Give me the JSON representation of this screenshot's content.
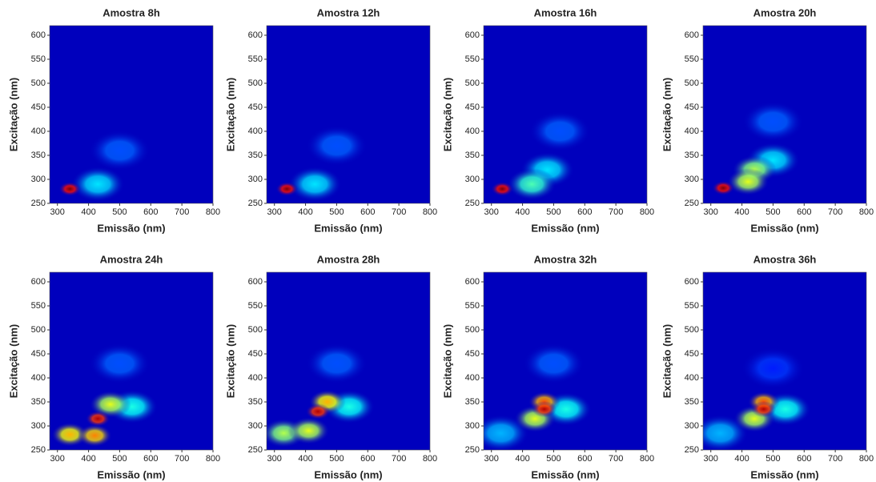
{
  "chart_data": [
    {
      "type": "heatmap",
      "title": "Amostra 8h",
      "x_label": "Emissão (nm)",
      "y_label": "Excitação (nm)",
      "xlim": [
        275,
        800
      ],
      "ylim": [
        250,
        620
      ],
      "xticks": [
        300,
        400,
        500,
        600,
        700,
        800
      ],
      "yticks": [
        250,
        300,
        350,
        400,
        450,
        500,
        550,
        600
      ],
      "peaks": [
        {
          "emission": 500,
          "excitation": 360,
          "intensity": 0.2
        },
        {
          "emission": 430,
          "excitation": 290,
          "intensity": 0.35
        },
        {
          "emission": 340,
          "excitation": 280,
          "intensity": 1.0
        }
      ]
    },
    {
      "type": "heatmap",
      "title": "Amostra 12h",
      "x_label": "Emissão (nm)",
      "y_label": "Excitação (nm)",
      "xlim": [
        275,
        800
      ],
      "ylim": [
        250,
        620
      ],
      "xticks": [
        300,
        400,
        500,
        600,
        700,
        800
      ],
      "yticks": [
        250,
        300,
        350,
        400,
        450,
        500,
        550,
        600
      ],
      "peaks": [
        {
          "emission": 500,
          "excitation": 370,
          "intensity": 0.2
        },
        {
          "emission": 430,
          "excitation": 290,
          "intensity": 0.35
        },
        {
          "emission": 340,
          "excitation": 280,
          "intensity": 1.0
        }
      ]
    },
    {
      "type": "heatmap",
      "title": "Amostra 16h",
      "x_label": "Emissão (nm)",
      "y_label": "Excitação (nm)",
      "xlim": [
        275,
        800
      ],
      "ylim": [
        250,
        620
      ],
      "xticks": [
        300,
        400,
        500,
        600,
        700,
        800
      ],
      "yticks": [
        250,
        300,
        350,
        400,
        450,
        500,
        550,
        600
      ],
      "peaks": [
        {
          "emission": 520,
          "excitation": 400,
          "intensity": 0.2
        },
        {
          "emission": 480,
          "excitation": 320,
          "intensity": 0.35
        },
        {
          "emission": 430,
          "excitation": 290,
          "intensity": 0.45
        },
        {
          "emission": 335,
          "excitation": 280,
          "intensity": 1.0
        }
      ]
    },
    {
      "type": "heatmap",
      "title": "Amostra 20h",
      "x_label": "Emissão (nm)",
      "y_label": "Excitação (nm)",
      "xlim": [
        275,
        800
      ],
      "ylim": [
        250,
        620
      ],
      "xticks": [
        300,
        400,
        500,
        600,
        700,
        800
      ],
      "yticks": [
        250,
        300,
        350,
        400,
        450,
        500,
        550,
        600
      ],
      "peaks": [
        {
          "emission": 500,
          "excitation": 420,
          "intensity": 0.2
        },
        {
          "emission": 500,
          "excitation": 340,
          "intensity": 0.35
        },
        {
          "emission": 440,
          "excitation": 320,
          "intensity": 0.55
        },
        {
          "emission": 420,
          "excitation": 295,
          "intensity": 0.6
        },
        {
          "emission": 340,
          "excitation": 282,
          "intensity": 1.0
        }
      ]
    },
    {
      "type": "heatmap",
      "title": "Amostra 24h",
      "x_label": "Emissão (nm)",
      "y_label": "Excitação (nm)",
      "xlim": [
        275,
        800
      ],
      "ylim": [
        250,
        620
      ],
      "xticks": [
        300,
        400,
        500,
        600,
        700,
        800
      ],
      "yticks": [
        250,
        300,
        350,
        400,
        450,
        500,
        550,
        600
      ],
      "peaks": [
        {
          "emission": 500,
          "excitation": 430,
          "intensity": 0.2
        },
        {
          "emission": 540,
          "excitation": 340,
          "intensity": 0.4
        },
        {
          "emission": 470,
          "excitation": 345,
          "intensity": 0.6
        },
        {
          "emission": 340,
          "excitation": 282,
          "intensity": 0.7
        },
        {
          "emission": 420,
          "excitation": 280,
          "intensity": 0.75
        },
        {
          "emission": 430,
          "excitation": 315,
          "intensity": 0.95
        }
      ]
    },
    {
      "type": "heatmap",
      "title": "Amostra 28h",
      "x_label": "Emissão (nm)",
      "y_label": "Excitação (nm)",
      "xlim": [
        275,
        800
      ],
      "ylim": [
        250,
        620
      ],
      "xticks": [
        300,
        400,
        500,
        600,
        700,
        800
      ],
      "yticks": [
        250,
        300,
        350,
        400,
        450,
        500,
        550,
        600
      ],
      "peaks": [
        {
          "emission": 500,
          "excitation": 430,
          "intensity": 0.2
        },
        {
          "emission": 540,
          "excitation": 340,
          "intensity": 0.4
        },
        {
          "emission": 330,
          "excitation": 285,
          "intensity": 0.55
        },
        {
          "emission": 410,
          "excitation": 290,
          "intensity": 0.6
        },
        {
          "emission": 470,
          "excitation": 350,
          "intensity": 0.7
        },
        {
          "emission": 440,
          "excitation": 330,
          "intensity": 0.95
        }
      ]
    },
    {
      "type": "heatmap",
      "title": "Amostra 32h",
      "x_label": "Emissão (nm)",
      "y_label": "Excitação (nm)",
      "xlim": [
        275,
        800
      ],
      "ylim": [
        250,
        620
      ],
      "xticks": [
        300,
        400,
        500,
        600,
        700,
        800
      ],
      "yticks": [
        250,
        300,
        350,
        400,
        450,
        500,
        550,
        600
      ],
      "peaks": [
        {
          "emission": 500,
          "excitation": 430,
          "intensity": 0.2
        },
        {
          "emission": 330,
          "excitation": 285,
          "intensity": 0.3
        },
        {
          "emission": 540,
          "excitation": 335,
          "intensity": 0.4
        },
        {
          "emission": 440,
          "excitation": 315,
          "intensity": 0.6
        },
        {
          "emission": 470,
          "excitation": 350,
          "intensity": 0.8
        },
        {
          "emission": 470,
          "excitation": 335,
          "intensity": 0.95
        }
      ]
    },
    {
      "type": "heatmap",
      "title": "Amostra 36h",
      "x_label": "Emissão (nm)",
      "y_label": "Excitação (nm)",
      "xlim": [
        275,
        800
      ],
      "ylim": [
        250,
        620
      ],
      "xticks": [
        300,
        400,
        500,
        600,
        700,
        800
      ],
      "yticks": [
        250,
        300,
        350,
        400,
        450,
        500,
        550,
        600
      ],
      "peaks": [
        {
          "emission": 500,
          "excitation": 420,
          "intensity": 0.15
        },
        {
          "emission": 330,
          "excitation": 285,
          "intensity": 0.3
        },
        {
          "emission": 540,
          "excitation": 335,
          "intensity": 0.4
        },
        {
          "emission": 440,
          "excitation": 315,
          "intensity": 0.6
        },
        {
          "emission": 470,
          "excitation": 350,
          "intensity": 0.8
        },
        {
          "emission": 470,
          "excitation": 335,
          "intensity": 0.95
        }
      ]
    }
  ]
}
